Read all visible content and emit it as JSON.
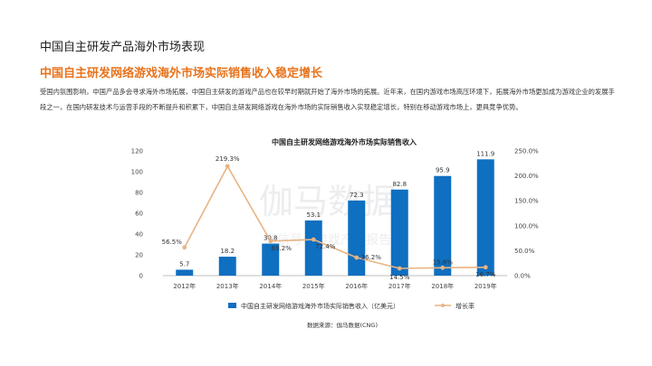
{
  "page": {
    "section_title": "中国自主研发产品海外市场表现",
    "headline": "中国自主研发网络游戏海外市场实际销售收入稳定增长",
    "intro": "受国内氛围影响，中国产品多会寻求海外市场拓展，中国自主研发的游戏产品也在较早时期就开始了海外市场的拓展。近年来，在国内游戏市场高压环境下，拓展海外市场更加成为游戏企业的发展手段之一，在国内研发技术与运营手段的不断提升和积累下，中国自主研发网络游戏在海外市场的实际销售收入实现稳定增长，特别在移动游戏市场上，更具竞争优势。",
    "watermark_main": "伽马数据",
    "watermark_sub": "微信号：游戏产业报告",
    "source": "数据来源：伽马数据(CNG)"
  },
  "chart_data": {
    "type": "bar",
    "title": "中国自主研发网络游戏海外市场实际销售收入",
    "categories": [
      "2012年",
      "2013年",
      "2014年",
      "2015年",
      "2016年",
      "2017年",
      "2018年",
      "2019年"
    ],
    "series": [
      {
        "name": "中国自主研发网络游戏海外市场实际销售收入（亿美元）",
        "type": "bar",
        "axis": "left",
        "values": [
          5.7,
          18.2,
          30.8,
          53.1,
          72.3,
          82.8,
          95.9,
          111.9
        ],
        "labels": [
          "5.7",
          "18.2",
          "30.8",
          "53.1",
          "72.3",
          "82.8",
          "95.9",
          "111.9"
        ],
        "color": "#0f6fc0"
      },
      {
        "name": "增长率",
        "type": "line",
        "axis": "right",
        "values": [
          56.5,
          219.3,
          69.2,
          72.4,
          36.2,
          14.5,
          15.8,
          16.7
        ],
        "labels": [
          "56.5%",
          "219.3%",
          "69.2%",
          "72.4%",
          "36.2%",
          "14.5%",
          "15.8%",
          "16.7%"
        ],
        "color": "#e8b483"
      }
    ],
    "y_left": {
      "min": 0,
      "max": 120,
      "ticks": [
        "0",
        "20",
        "40",
        "60",
        "80",
        "100",
        "120"
      ]
    },
    "y_right": {
      "min": 0,
      "max": 250,
      "ticks": [
        "0.0%",
        "50.0%",
        "100.0%",
        "150.0%",
        "200.0%",
        "250.0%"
      ]
    },
    "grid": false,
    "legend_position": "bottom"
  }
}
